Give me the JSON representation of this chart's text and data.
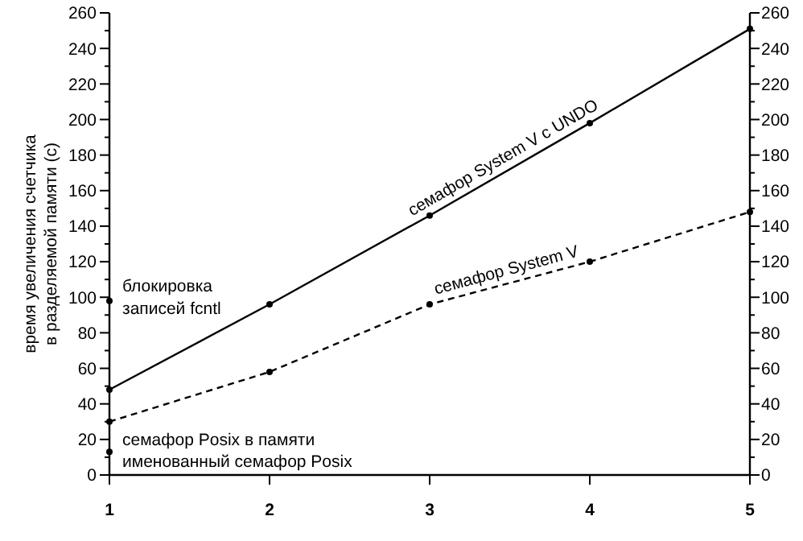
{
  "chart_data": {
    "type": "line",
    "ylabel": "время увеличения счетчика\nв разделяемой памяти (с)",
    "x": [
      1,
      2,
      3,
      4,
      5
    ],
    "xlim": [
      1,
      5
    ],
    "xticks": [
      1,
      2,
      3,
      4,
      5
    ],
    "ylim": [
      0,
      260
    ],
    "yticks": [
      0,
      {
        "value": 10,
        "label": null
      },
      20,
      {
        "value": 30,
        "label": null
      },
      40,
      {
        "value": 50,
        "label": null
      },
      60,
      {
        "value": 70,
        "label": null
      },
      80,
      {
        "value": 90,
        "label": null
      },
      100,
      {
        "value": 110,
        "label": null
      },
      120,
      {
        "value": 130,
        "label": null
      },
      140,
      {
        "value": 150,
        "label": null
      },
      160,
      {
        "value": 170,
        "label": null
      },
      180,
      {
        "value": 190,
        "label": null
      },
      200,
      {
        "value": 210,
        "label": null
      },
      220,
      {
        "value": 230,
        "label": null
      },
      240,
      {
        "value": 250,
        "label": null
      },
      260
    ],
    "y2lim": [
      0,
      260
    ],
    "y2ticks": [
      0,
      {
        "value": 10,
        "label": null
      },
      20,
      {
        "value": 30,
        "label": null
      },
      40,
      {
        "value": 50,
        "label": null
      },
      60,
      {
        "value": 70,
        "label": null
      },
      80,
      {
        "value": 90,
        "label": null
      },
      100,
      {
        "value": 110,
        "label": null
      },
      120,
      {
        "value": 130,
        "label": null
      },
      140,
      {
        "value": 150,
        "label": null
      },
      160,
      {
        "value": 170,
        "label": null
      },
      180,
      {
        "value": 190,
        "label": null
      },
      200,
      {
        "value": 210,
        "label": null
      },
      220,
      {
        "value": 230,
        "label": null
      },
      240,
      {
        "value": 250,
        "label": null
      },
      260
    ],
    "marker": "circle",
    "grid": false,
    "legend": "left",
    "series": [
      {
        "name": "семафор System V с UNDO",
        "color": "#000000",
        "line_style": "solid",
        "values": [
          48,
          96,
          146,
          198,
          251
        ]
      },
      {
        "name": "семафор System V",
        "color": "#000000",
        "line_style": "dashed",
        "values": [
          30,
          58,
          96,
          120,
          148
        ]
      },
      {
        "name": "блокировка записей fcntl",
        "color": "#000000",
        "values": [
          98,
          null,
          null,
          null,
          null
        ]
      },
      {
        "name": "семафор Posix в памяти",
        "color": "#000000",
        "values": [
          13,
          null,
          null,
          null,
          null
        ]
      }
    ],
    "annotations": [
      "именованный семафор Posix"
    ]
  }
}
